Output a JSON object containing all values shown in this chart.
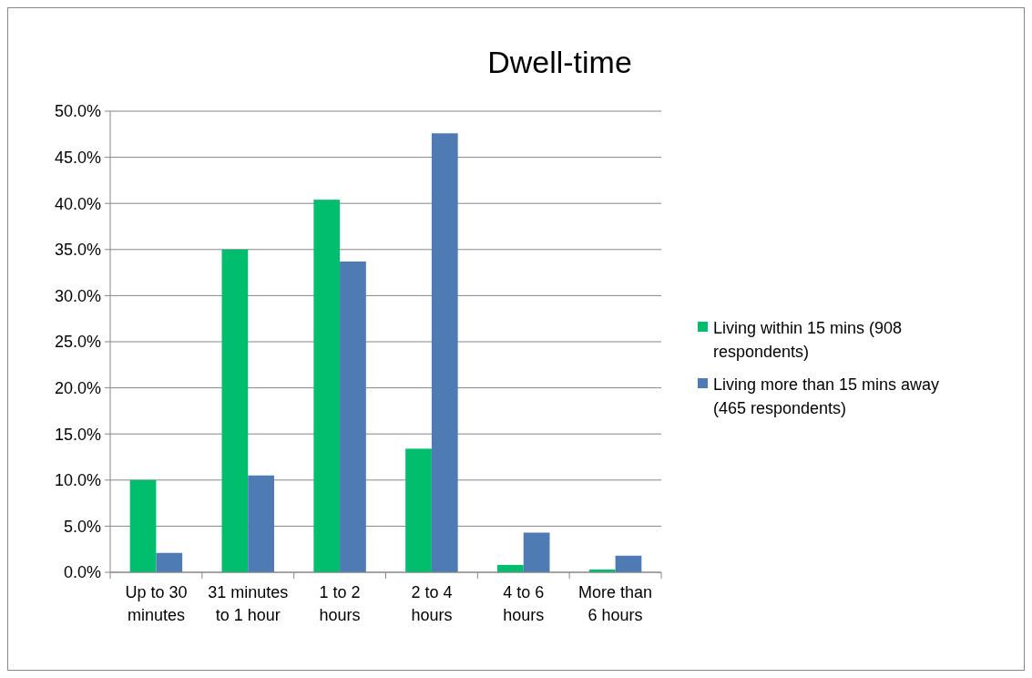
{
  "chart_data": {
    "type": "bar",
    "title": "Dwell-time",
    "categories": [
      "Up to 30 minutes",
      "31 minutes to 1 hour",
      "1 to 2 hours",
      "2 to 4 hours",
      "4 to 6 hours",
      "More than 6 hours"
    ],
    "series": [
      {
        "name": "Living within 15 mins (908 respondents)",
        "color": "#00be6e",
        "values": [
          10.0,
          35.0,
          40.4,
          13.4,
          0.8,
          0.3
        ]
      },
      {
        "name": "Living more than 15 mins away (465 respondents)",
        "color": "#4f7bb5",
        "values": [
          2.1,
          10.5,
          33.7,
          47.6,
          4.3,
          1.8
        ]
      }
    ],
    "ylim": [
      0,
      50
    ],
    "yticks": [
      {
        "value": 0,
        "label": "0.0%"
      },
      {
        "value": 5,
        "label": "5.0%"
      },
      {
        "value": 10,
        "label": "10.0%"
      },
      {
        "value": 15,
        "label": "15.0%"
      },
      {
        "value": 20,
        "label": "20.0%"
      },
      {
        "value": 25,
        "label": "25.0%"
      },
      {
        "value": 30,
        "label": "30.0%"
      },
      {
        "value": 35,
        "label": "35.0%"
      },
      {
        "value": 40,
        "label": "40.0%"
      },
      {
        "value": 45,
        "label": "45.0%"
      },
      {
        "value": 50,
        "label": "50.0%"
      }
    ],
    "grid": "y",
    "legend": "right"
  }
}
